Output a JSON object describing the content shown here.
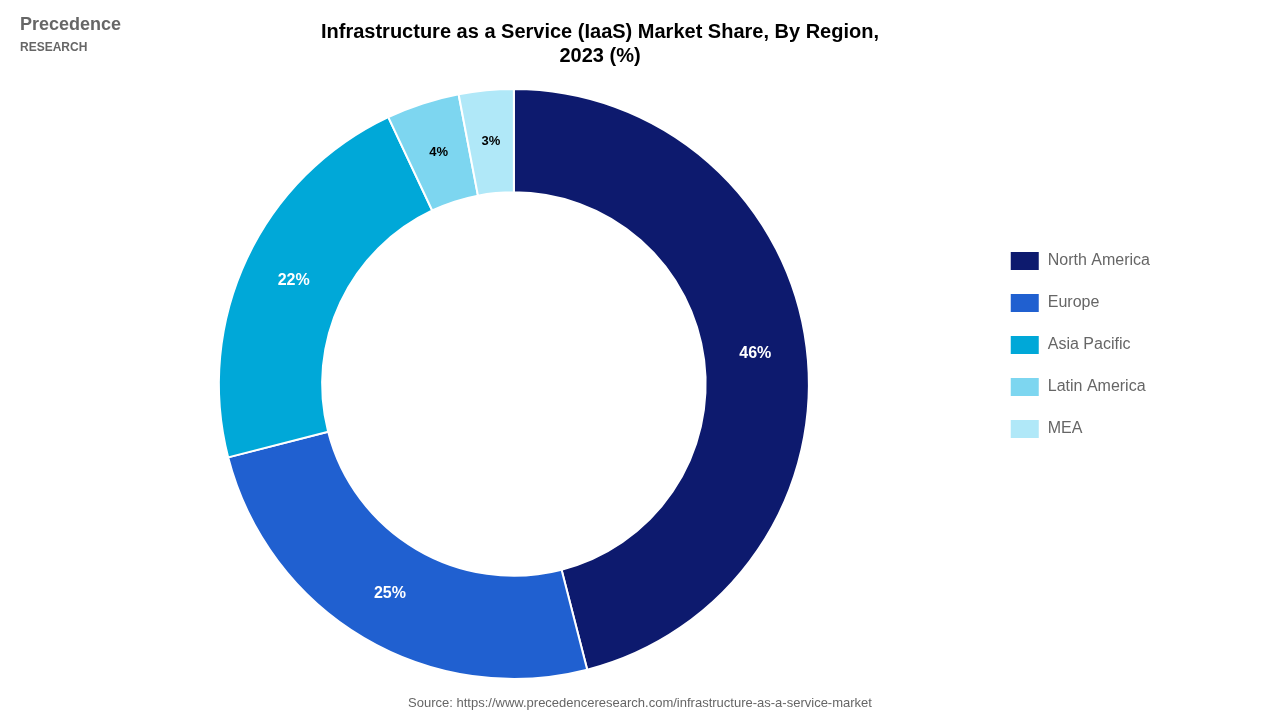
{
  "chart_data": {
    "type": "doughnut",
    "title": "Infrastructure as a Service (IaaS) Market Share, By Region,\n2023 (%)",
    "categories": [
      "North America",
      "Europe",
      "Asia Pacific",
      "Latin America",
      "MEA"
    ],
    "values": [
      46,
      25,
      22,
      4,
      3
    ],
    "value_labels": [
      "46%",
      "25%",
      "22%",
      "4%",
      "3%"
    ],
    "colors": [
      "#0d1a6e",
      "#2060d0",
      "#00a8d8",
      "#7dd6f0",
      "#b0e8f8"
    ],
    "data_labels": true,
    "legend": "right",
    "annotations": [
      "Precedence",
      "RESEARCH",
      "Source: https://www.precedenceresearch.com/infrastructure-as-a-service-market"
    ]
  }
}
